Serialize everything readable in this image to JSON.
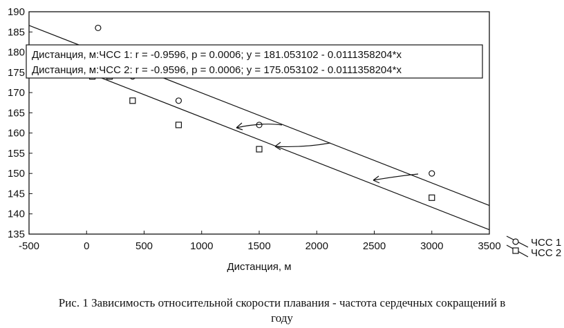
{
  "chart_data": {
    "type": "scatter",
    "xlabel": "Дистанция, м",
    "ylabel": "",
    "xlim": [
      -500,
      3500
    ],
    "ylim": [
      135,
      190
    ],
    "x_ticks": [
      -500,
      0,
      500,
      1000,
      1500,
      2000,
      2500,
      3000,
      3500
    ],
    "y_ticks": [
      135,
      140,
      145,
      150,
      155,
      160,
      165,
      170,
      175,
      180,
      185,
      190
    ],
    "grid": false,
    "legend_position": "right",
    "series": [
      {
        "name": "ЧСС 1",
        "marker": "circle",
        "points": [
          {
            "x": 100,
            "y": 186
          },
          {
            "x": 400,
            "y": 174
          },
          {
            "x": 800,
            "y": 168
          },
          {
            "x": 1500,
            "y": 162
          },
          {
            "x": 3000,
            "y": 150
          }
        ],
        "fit": {
          "intercept": 181.053102,
          "slope": -0.0111358204
        }
      },
      {
        "name": "ЧСС 2",
        "marker": "square",
        "points": [
          {
            "x": 50,
            "y": 174
          },
          {
            "x": 200,
            "y": 174
          },
          {
            "x": 400,
            "y": 168
          },
          {
            "x": 800,
            "y": 162
          },
          {
            "x": 1500,
            "y": 156
          },
          {
            "x": 3000,
            "y": 144
          }
        ],
        "fit": {
          "intercept": 175.053102,
          "slope": -0.0111358204
        }
      }
    ],
    "annotations": [
      "Дистанция, м:ЧСС 1:   r = -0.9596, p = 0.0006;  y = 181.053102 - 0.0111358204*x",
      "Дистанция, м:ЧСС 2:   r = -0.9596, p = 0.0006;  y = 175.053102 - 0.0111358204*x"
    ]
  },
  "caption": {
    "line1": "Рис. 1 Зависимость относительной скорости плавания - частота сердечных сокращений в",
    "line2": "году"
  },
  "colors": {
    "ink": "#111111",
    "background": "#ffffff"
  }
}
